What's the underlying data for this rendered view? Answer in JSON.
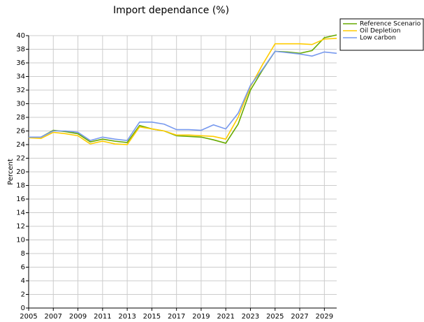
{
  "chart_data": {
    "type": "line",
    "title": "Import dependance (%)",
    "y_label": "Percent",
    "x": [
      2005,
      2006,
      2007,
      2008,
      2009,
      2010,
      2011,
      2012,
      2013,
      2014,
      2015,
      2016,
      2017,
      2018,
      2019,
      2020,
      2021,
      2022,
      2023,
      2024,
      2025,
      2026,
      2027,
      2028,
      2029,
      2030
    ],
    "series": [
      {
        "name": "Reference Scenario",
        "color": "#66aa00",
        "values": [
          25.1,
          25.1,
          26.1,
          25.9,
          25.6,
          24.4,
          24.8,
          24.5,
          24.3,
          26.8,
          26.3,
          26.0,
          25.3,
          25.2,
          25.1,
          24.7,
          24.2,
          27.0,
          32.0,
          35.0,
          37.7,
          37.6,
          37.4,
          37.8,
          39.7,
          40.1
        ]
      },
      {
        "name": "Oil Depletion",
        "color": "#ffcc00",
        "values": [
          25.0,
          24.9,
          25.8,
          25.6,
          25.3,
          24.1,
          24.5,
          24.1,
          24.0,
          26.6,
          26.3,
          26.0,
          25.4,
          25.4,
          25.3,
          25.2,
          24.8,
          28.0,
          32.5,
          35.8,
          38.8,
          38.8,
          38.8,
          38.7,
          39.5,
          39.6
        ]
      },
      {
        "name": "Low carbon",
        "color": "#7799ee",
        "values": [
          25.1,
          25.1,
          26.0,
          26.0,
          25.8,
          24.6,
          25.1,
          24.8,
          24.6,
          27.3,
          27.3,
          27.0,
          26.2,
          26.2,
          26.1,
          26.9,
          26.3,
          28.6,
          32.7,
          35.1,
          37.7,
          37.5,
          37.3,
          37.0,
          37.6,
          37.4
        ]
      }
    ],
    "xlim": [
      2005,
      2030
    ],
    "xticks": [
      2005,
      2007,
      2009,
      2011,
      2013,
      2015,
      2017,
      2019,
      2021,
      2023,
      2025,
      2027,
      2029
    ],
    "ylim": [
      0,
      40
    ],
    "yticks": [
      0,
      2,
      4,
      6,
      8,
      10,
      12,
      14,
      16,
      18,
      20,
      22,
      24,
      26,
      28,
      30,
      32,
      34,
      36,
      38,
      40
    ],
    "grid": true,
    "legend": "top-right"
  }
}
